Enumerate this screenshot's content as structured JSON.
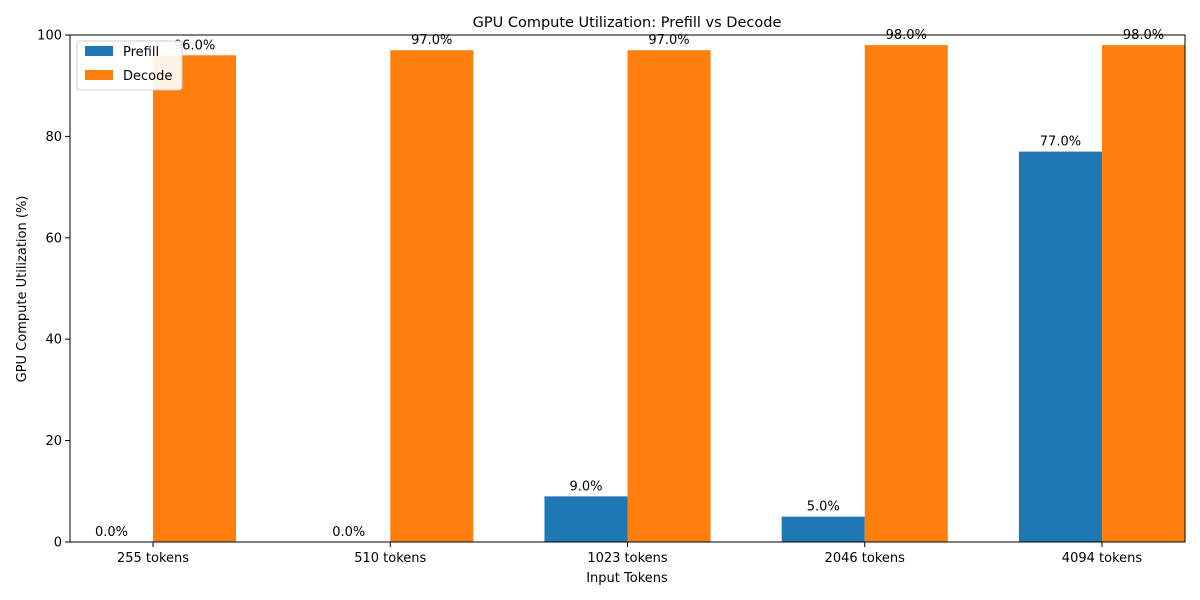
{
  "chart_data": {
    "type": "bar",
    "title": "GPU Compute Utilization: Prefill vs Decode",
    "xlabel": "Input Tokens",
    "ylabel": "GPU Compute Utilization (%)",
    "categories": [
      "255 tokens",
      "510 tokens",
      "1023 tokens",
      "2046 tokens",
      "4094 tokens"
    ],
    "ylim": [
      0,
      100
    ],
    "yticks": [
      0,
      20,
      40,
      60,
      80,
      100
    ],
    "grid": false,
    "legend_position": "top-left",
    "series": [
      {
        "name": "Prefill",
        "color": "#1f77b4",
        "values": [
          0.0,
          0.0,
          9.0,
          5.0,
          77.0
        ],
        "labels": [
          "0.0%",
          "0.0%",
          "9.0%",
          "5.0%",
          "77.0%"
        ]
      },
      {
        "name": "Decode",
        "color": "#ff7f0e",
        "values": [
          96.0,
          97.0,
          97.0,
          98.0,
          98.0
        ],
        "labels": [
          "96.0%",
          "97.0%",
          "97.0%",
          "98.0%",
          "98.0%"
        ]
      }
    ]
  }
}
